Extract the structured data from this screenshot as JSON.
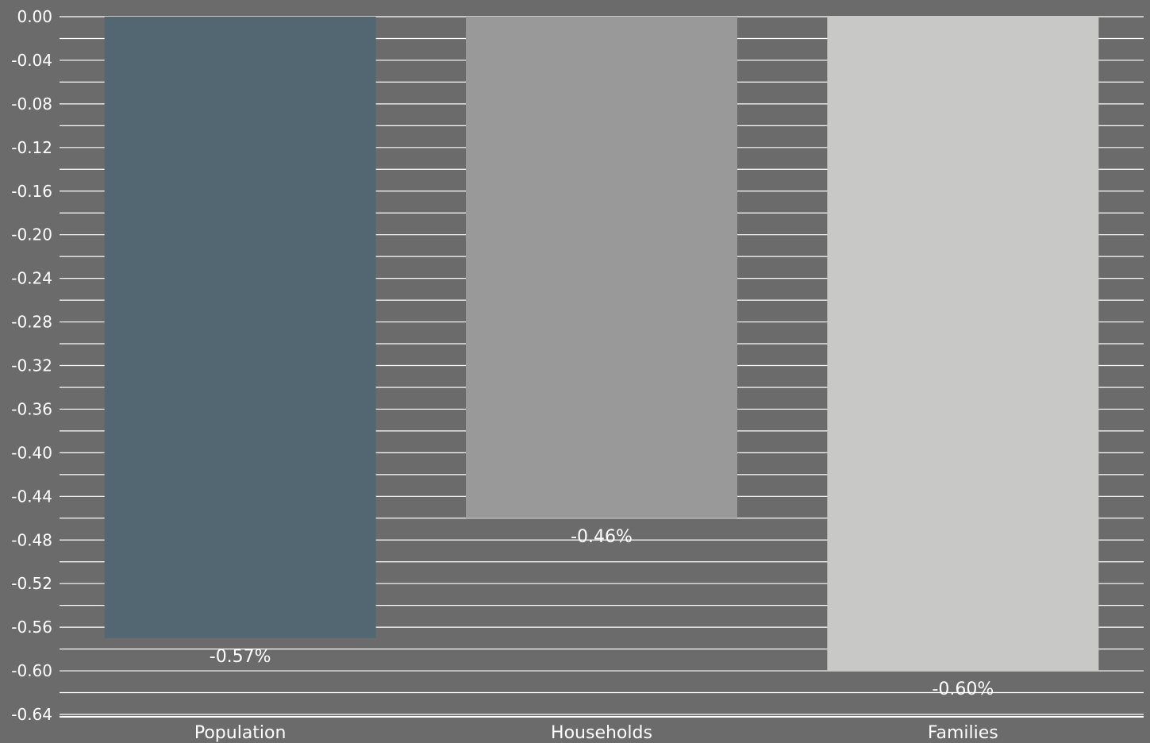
{
  "chart_data": {
    "type": "bar",
    "categories": [
      "Population",
      "Households",
      "Families"
    ],
    "values": [
      -0.57,
      -0.46,
      -0.6
    ],
    "data_labels": [
      "-0.57%",
      "-0.46%",
      "-0.60%"
    ],
    "title": "",
    "xlabel": "",
    "ylabel": "",
    "ylim": [
      -0.64,
      0.0
    ],
    "y_ticks": [
      "0.00",
      "-0.04",
      "-0.08",
      "-0.12",
      "-0.16",
      "-0.20",
      "-0.24",
      "-0.28",
      "-0.32",
      "-0.36",
      "-0.40",
      "-0.44",
      "-0.48",
      "-0.52",
      "-0.56",
      "-0.60",
      "-0.64"
    ],
    "grid": true,
    "legend": "none"
  },
  "colors": {
    "background": "#6b6b6b",
    "grid": "#ffffff",
    "text": "#ffffff",
    "bars": [
      "#536772",
      "#999999",
      "#c8c8c6"
    ]
  }
}
